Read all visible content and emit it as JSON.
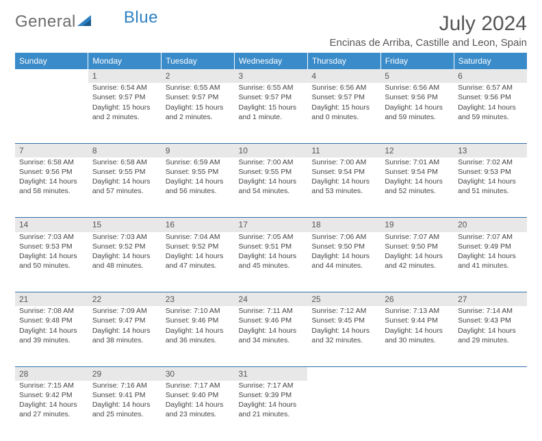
{
  "logo": {
    "text1": "General",
    "text2": "Blue"
  },
  "title": "July 2024",
  "location": "Encinas de Arriba, Castille and Leon, Spain",
  "colors": {
    "header_bg": "#3a8bc9",
    "header_text": "#ffffff",
    "daynum_bg": "#e8e8e8",
    "week_border": "#2e6fa8",
    "body_text": "#444444",
    "title_text": "#555555",
    "logo_gray": "#6c6c6c",
    "logo_blue": "#2c7fc2"
  },
  "typography": {
    "title_fontsize": 30,
    "location_fontsize": 15,
    "header_fontsize": 12,
    "daynum_fontsize": 12,
    "cell_fontsize": 10.5
  },
  "days_of_week": [
    "Sunday",
    "Monday",
    "Tuesday",
    "Wednesday",
    "Thursday",
    "Friday",
    "Saturday"
  ],
  "weeks": [
    {
      "nums": [
        "",
        "1",
        "2",
        "3",
        "4",
        "5",
        "6"
      ],
      "cells": [
        [],
        [
          "Sunrise: 6:54 AM",
          "Sunset: 9:57 PM",
          "Daylight: 15 hours",
          "and 2 minutes."
        ],
        [
          "Sunrise: 6:55 AM",
          "Sunset: 9:57 PM",
          "Daylight: 15 hours",
          "and 2 minutes."
        ],
        [
          "Sunrise: 6:55 AM",
          "Sunset: 9:57 PM",
          "Daylight: 15 hours",
          "and 1 minute."
        ],
        [
          "Sunrise: 6:56 AM",
          "Sunset: 9:57 PM",
          "Daylight: 15 hours",
          "and 0 minutes."
        ],
        [
          "Sunrise: 6:56 AM",
          "Sunset: 9:56 PM",
          "Daylight: 14 hours",
          "and 59 minutes."
        ],
        [
          "Sunrise: 6:57 AM",
          "Sunset: 9:56 PM",
          "Daylight: 14 hours",
          "and 59 minutes."
        ]
      ]
    },
    {
      "nums": [
        "7",
        "8",
        "9",
        "10",
        "11",
        "12",
        "13"
      ],
      "cells": [
        [
          "Sunrise: 6:58 AM",
          "Sunset: 9:56 PM",
          "Daylight: 14 hours",
          "and 58 minutes."
        ],
        [
          "Sunrise: 6:58 AM",
          "Sunset: 9:55 PM",
          "Daylight: 14 hours",
          "and 57 minutes."
        ],
        [
          "Sunrise: 6:59 AM",
          "Sunset: 9:55 PM",
          "Daylight: 14 hours",
          "and 56 minutes."
        ],
        [
          "Sunrise: 7:00 AM",
          "Sunset: 9:55 PM",
          "Daylight: 14 hours",
          "and 54 minutes."
        ],
        [
          "Sunrise: 7:00 AM",
          "Sunset: 9:54 PM",
          "Daylight: 14 hours",
          "and 53 minutes."
        ],
        [
          "Sunrise: 7:01 AM",
          "Sunset: 9:54 PM",
          "Daylight: 14 hours",
          "and 52 minutes."
        ],
        [
          "Sunrise: 7:02 AM",
          "Sunset: 9:53 PM",
          "Daylight: 14 hours",
          "and 51 minutes."
        ]
      ]
    },
    {
      "nums": [
        "14",
        "15",
        "16",
        "17",
        "18",
        "19",
        "20"
      ],
      "cells": [
        [
          "Sunrise: 7:03 AM",
          "Sunset: 9:53 PM",
          "Daylight: 14 hours",
          "and 50 minutes."
        ],
        [
          "Sunrise: 7:03 AM",
          "Sunset: 9:52 PM",
          "Daylight: 14 hours",
          "and 48 minutes."
        ],
        [
          "Sunrise: 7:04 AM",
          "Sunset: 9:52 PM",
          "Daylight: 14 hours",
          "and 47 minutes."
        ],
        [
          "Sunrise: 7:05 AM",
          "Sunset: 9:51 PM",
          "Daylight: 14 hours",
          "and 45 minutes."
        ],
        [
          "Sunrise: 7:06 AM",
          "Sunset: 9:50 PM",
          "Daylight: 14 hours",
          "and 44 minutes."
        ],
        [
          "Sunrise: 7:07 AM",
          "Sunset: 9:50 PM",
          "Daylight: 14 hours",
          "and 42 minutes."
        ],
        [
          "Sunrise: 7:07 AM",
          "Sunset: 9:49 PM",
          "Daylight: 14 hours",
          "and 41 minutes."
        ]
      ]
    },
    {
      "nums": [
        "21",
        "22",
        "23",
        "24",
        "25",
        "26",
        "27"
      ],
      "cells": [
        [
          "Sunrise: 7:08 AM",
          "Sunset: 9:48 PM",
          "Daylight: 14 hours",
          "and 39 minutes."
        ],
        [
          "Sunrise: 7:09 AM",
          "Sunset: 9:47 PM",
          "Daylight: 14 hours",
          "and 38 minutes."
        ],
        [
          "Sunrise: 7:10 AM",
          "Sunset: 9:46 PM",
          "Daylight: 14 hours",
          "and 36 minutes."
        ],
        [
          "Sunrise: 7:11 AM",
          "Sunset: 9:46 PM",
          "Daylight: 14 hours",
          "and 34 minutes."
        ],
        [
          "Sunrise: 7:12 AM",
          "Sunset: 9:45 PM",
          "Daylight: 14 hours",
          "and 32 minutes."
        ],
        [
          "Sunrise: 7:13 AM",
          "Sunset: 9:44 PM",
          "Daylight: 14 hours",
          "and 30 minutes."
        ],
        [
          "Sunrise: 7:14 AM",
          "Sunset: 9:43 PM",
          "Daylight: 14 hours",
          "and 29 minutes."
        ]
      ]
    },
    {
      "nums": [
        "28",
        "29",
        "30",
        "31",
        "",
        "",
        ""
      ],
      "cells": [
        [
          "Sunrise: 7:15 AM",
          "Sunset: 9:42 PM",
          "Daylight: 14 hours",
          "and 27 minutes."
        ],
        [
          "Sunrise: 7:16 AM",
          "Sunset: 9:41 PM",
          "Daylight: 14 hours",
          "and 25 minutes."
        ],
        [
          "Sunrise: 7:17 AM",
          "Sunset: 9:40 PM",
          "Daylight: 14 hours",
          "and 23 minutes."
        ],
        [
          "Sunrise: 7:17 AM",
          "Sunset: 9:39 PM",
          "Daylight: 14 hours",
          "and 21 minutes."
        ],
        [],
        [],
        []
      ]
    }
  ]
}
